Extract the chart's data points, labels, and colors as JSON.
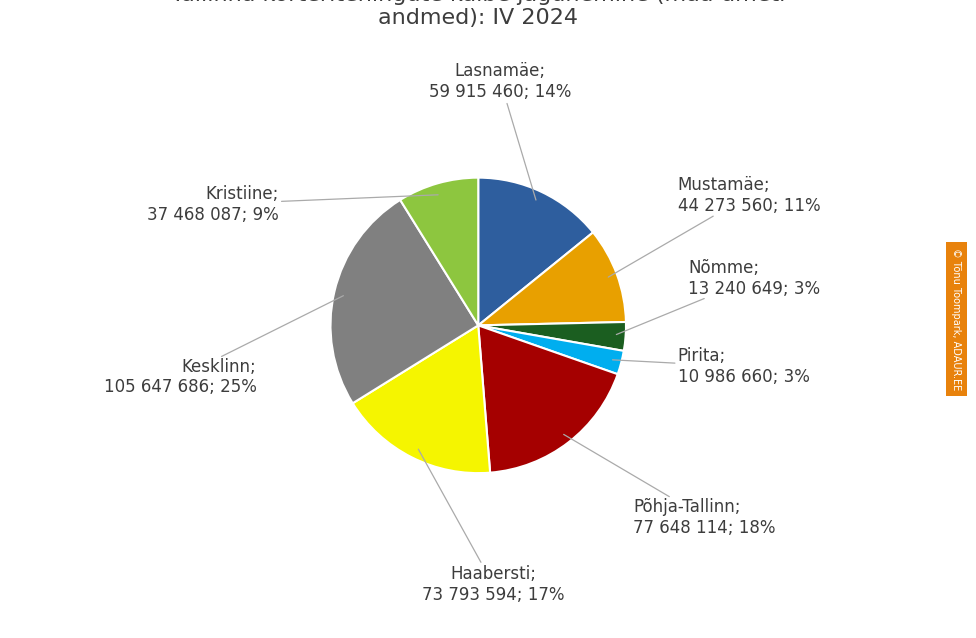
{
  "slices": [
    {
      "label": "Lasnamäe",
      "value": 59915460,
      "pct": 14,
      "color": "#2E5E9E"
    },
    {
      "label": "Mustamäe",
      "value": 44273560,
      "pct": 11,
      "color": "#E8A000"
    },
    {
      "label": "Nõmme",
      "value": 13240649,
      "pct": 3,
      "color": "#1B5E20"
    },
    {
      "label": "Pirita",
      "value": 10986660,
      "pct": 3,
      "color": "#00AEEF"
    },
    {
      "label": "Põhja-Tallinn",
      "value": 77648114,
      "pct": 18,
      "color": "#A50000"
    },
    {
      "label": "Haabersti",
      "value": 73793594,
      "pct": 17,
      "color": "#F5F500"
    },
    {
      "label": "Kesklinn",
      "value": 105647686,
      "pct": 25,
      "color": "#808080"
    },
    {
      "label": "Kristiine",
      "value": 37468087,
      "pct": 9,
      "color": "#8DC63F"
    }
  ],
  "background_color": "#FFFFFF",
  "title_fontsize": 16,
  "label_fontsize": 12,
  "text_color": "#3D3D3D",
  "arrow_color": "#AAAAAA",
  "watermark_bg": "#E8820C",
  "watermark_text": "© Tõnu Toompark, ADAUR.EE"
}
